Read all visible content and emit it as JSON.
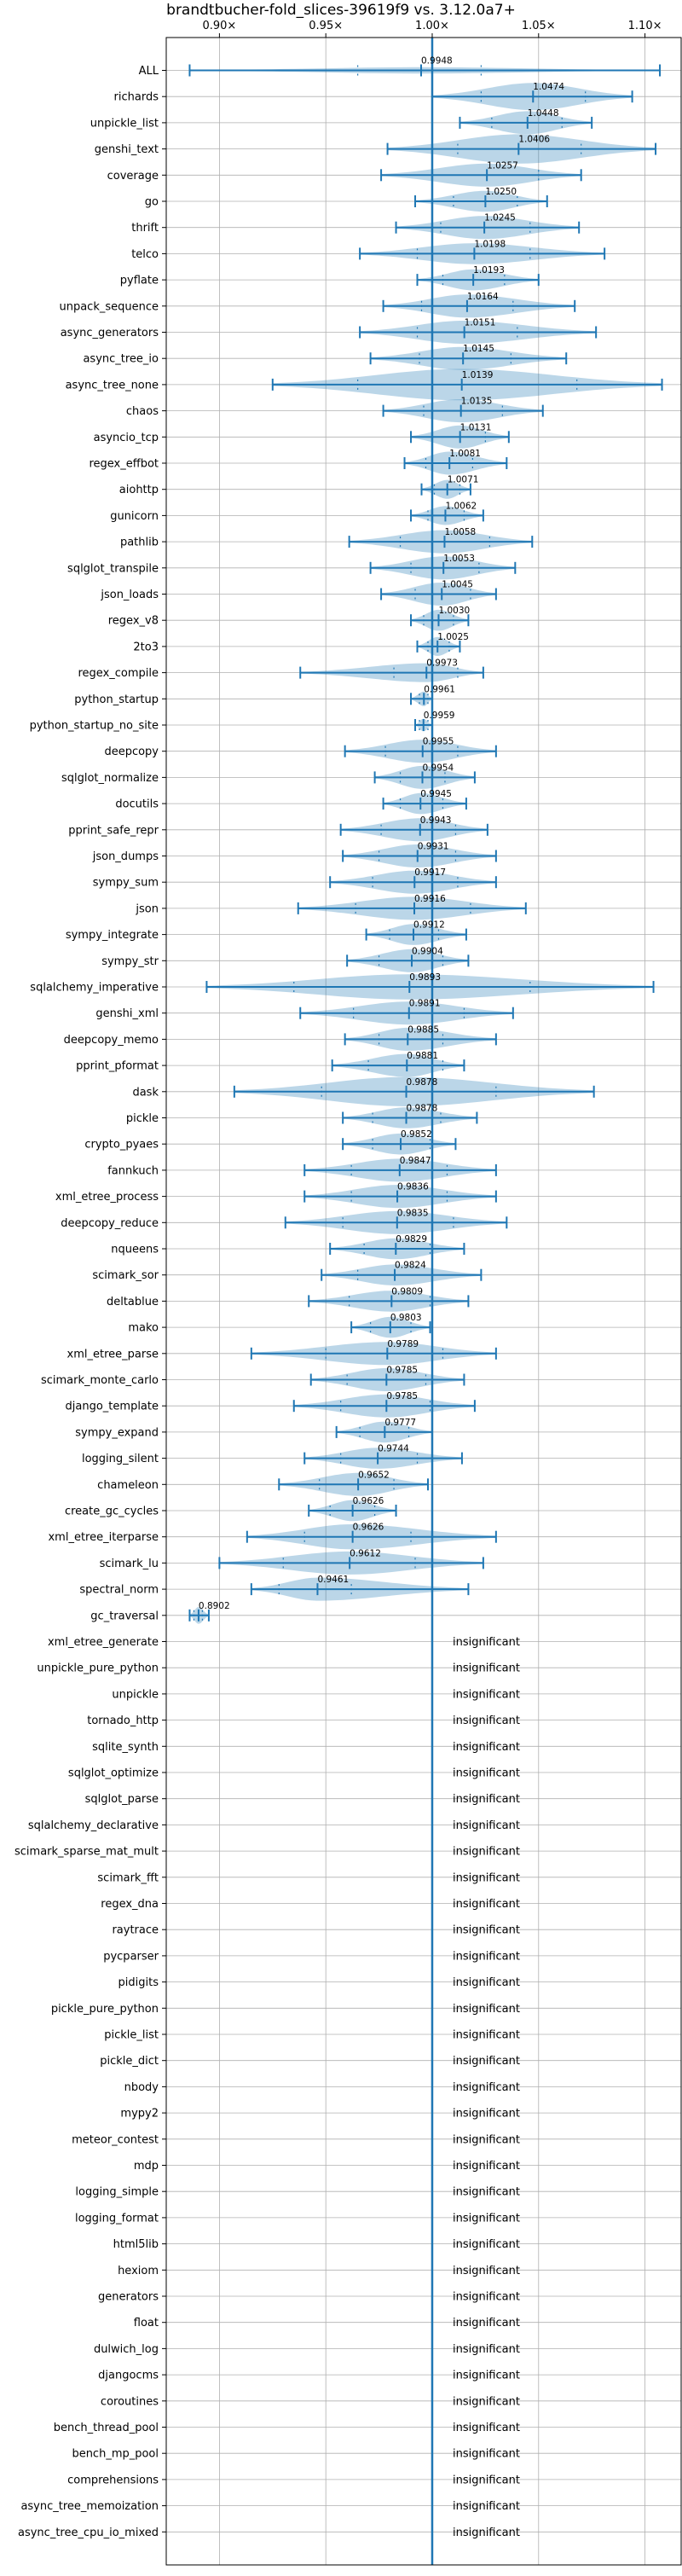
{
  "chart_data": {
    "type": "violin",
    "title": "brandtbucher-fold_slices-39619f9 vs. 3.12.0a7+",
    "x_tick_labels": [
      "0.90×",
      "0.95×",
      "1.00×",
      "1.05×",
      "1.10×"
    ],
    "x_ticks": [
      0.9,
      0.95,
      1.0,
      1.05,
      1.1
    ],
    "xlim": [
      0.875,
      1.117
    ],
    "reference_x": 1.0,
    "grid": true,
    "insignificant_label": "insignificant",
    "benchmarks": [
      {
        "name": "ALL",
        "value": 0.9948,
        "label": "0.9948",
        "min": 0.886,
        "max": 1.107,
        "q1": 0.965,
        "q3": 1.023,
        "width": 0.15
      },
      {
        "name": "richards",
        "value": 1.0474,
        "label": "1.0474",
        "min": 1.0,
        "max": 1.094,
        "q1": 1.023,
        "q3": 1.072,
        "width": 0.65
      },
      {
        "name": "unpickle_list",
        "value": 1.0448,
        "label": "1.0448",
        "min": 1.013,
        "max": 1.075,
        "q1": 1.028,
        "q3": 1.061,
        "width": 0.55
      },
      {
        "name": "genshi_text",
        "value": 1.0406,
        "label": "1.0406",
        "min": 0.979,
        "max": 1.105,
        "q1": 1.012,
        "q3": 1.07,
        "width": 0.7
      },
      {
        "name": "coverage",
        "value": 1.0257,
        "label": "1.0257",
        "min": 0.976,
        "max": 1.07,
        "q1": 1.0,
        "q3": 1.05,
        "width": 0.55
      },
      {
        "name": "go",
        "value": 1.025,
        "label": "1.0250",
        "min": 0.992,
        "max": 1.054,
        "q1": 1.01,
        "q3": 1.04,
        "width": 0.5
      },
      {
        "name": "thrift",
        "value": 1.0245,
        "label": "1.0245",
        "min": 0.983,
        "max": 1.069,
        "q1": 1.004,
        "q3": 1.046,
        "width": 0.55
      },
      {
        "name": "telco",
        "value": 1.0198,
        "label": "1.0198",
        "min": 0.966,
        "max": 1.081,
        "q1": 0.993,
        "q3": 1.046,
        "width": 0.5
      },
      {
        "name": "pyflate",
        "value": 1.0193,
        "label": "1.0193",
        "min": 0.993,
        "max": 1.05,
        "q1": 1.005,
        "q3": 1.034,
        "width": 0.5
      },
      {
        "name": "unpack_sequence",
        "value": 1.0164,
        "label": "1.0164",
        "min": 0.977,
        "max": 1.067,
        "q1": 0.995,
        "q3": 1.038,
        "width": 0.55
      },
      {
        "name": "async_generators",
        "value": 1.0151,
        "label": "1.0151",
        "min": 0.966,
        "max": 1.077,
        "q1": 0.993,
        "q3": 1.04,
        "width": 0.55
      },
      {
        "name": "async_tree_io",
        "value": 1.0145,
        "label": "1.0145",
        "min": 0.971,
        "max": 1.063,
        "q1": 0.994,
        "q3": 1.037,
        "width": 0.55
      },
      {
        "name": "async_tree_none",
        "value": 1.0139,
        "label": "1.0139",
        "min": 0.925,
        "max": 1.108,
        "q1": 0.965,
        "q3": 1.068,
        "width": 0.75
      },
      {
        "name": "chaos",
        "value": 1.0135,
        "label": "1.0135",
        "min": 0.977,
        "max": 1.052,
        "q1": 0.996,
        "q3": 1.033,
        "width": 0.55
      },
      {
        "name": "asyncio_tcp",
        "value": 1.0131,
        "label": "1.0131",
        "min": 0.99,
        "max": 1.036,
        "q1": 1.0,
        "q3": 1.025,
        "width": 0.55
      },
      {
        "name": "regex_effbot",
        "value": 1.0081,
        "label": "1.0081",
        "min": 0.987,
        "max": 1.035,
        "q1": 0.997,
        "q3": 1.019,
        "width": 0.55
      },
      {
        "name": "aiohttp",
        "value": 1.0071,
        "label": "1.0071",
        "min": 0.995,
        "max": 1.018,
        "q1": 1.001,
        "q3": 1.013,
        "width": 0.45
      },
      {
        "name": "gunicorn",
        "value": 1.0062,
        "label": "1.0062",
        "min": 0.99,
        "max": 1.024,
        "q1": 0.998,
        "q3": 1.015,
        "width": 0.45
      },
      {
        "name": "pathlib",
        "value": 1.0058,
        "label": "1.0058",
        "min": 0.961,
        "max": 1.047,
        "q1": 0.985,
        "q3": 1.027,
        "width": 0.55
      },
      {
        "name": "sqlglot_transpile",
        "value": 1.0053,
        "label": "1.0053",
        "min": 0.971,
        "max": 1.039,
        "q1": 0.99,
        "q3": 1.022,
        "width": 0.55
      },
      {
        "name": "json_loads",
        "value": 1.0045,
        "label": "1.0045",
        "min": 0.976,
        "max": 1.03,
        "q1": 0.992,
        "q3": 1.018,
        "width": 0.55
      },
      {
        "name": "regex_v8",
        "value": 1.003,
        "label": "1.0030",
        "min": 0.99,
        "max": 1.017,
        "q1": 0.996,
        "q3": 1.01,
        "width": 0.5
      },
      {
        "name": "2to3",
        "value": 1.0025,
        "label": "1.0025",
        "min": 0.993,
        "max": 1.013,
        "q1": 0.998,
        "q3": 1.008,
        "width": 0.45
      },
      {
        "name": "regex_compile",
        "value": 0.9973,
        "label": "0.9973",
        "min": 0.938,
        "max": 1.024,
        "q1": 0.982,
        "q3": 1.012,
        "width": 0.45
      },
      {
        "name": "python_startup",
        "value": 0.9961,
        "label": "0.9961",
        "min": 0.99,
        "max": 1.0,
        "q1": 0.994,
        "q3": 0.998,
        "width": 0.35
      },
      {
        "name": "python_startup_no_site",
        "value": 0.9959,
        "label": "0.9959",
        "min": 0.992,
        "max": 1.0,
        "q1": 0.994,
        "q3": 0.998,
        "width": 0.3
      },
      {
        "name": "deepcopy",
        "value": 0.9955,
        "label": "0.9955",
        "min": 0.959,
        "max": 1.03,
        "q1": 0.978,
        "q3": 1.012,
        "width": 0.55
      },
      {
        "name": "sqlglot_normalize",
        "value": 0.9954,
        "label": "0.9954",
        "min": 0.973,
        "max": 1.02,
        "q1": 0.985,
        "q3": 1.006,
        "width": 0.55
      },
      {
        "name": "docutils",
        "value": 0.9945,
        "label": "0.9945",
        "min": 0.977,
        "max": 1.016,
        "q1": 0.985,
        "q3": 1.005,
        "width": 0.5
      },
      {
        "name": "pprint_safe_repr",
        "value": 0.9943,
        "label": "0.9943",
        "min": 0.957,
        "max": 1.026,
        "q1": 0.976,
        "q3": 1.011,
        "width": 0.55
      },
      {
        "name": "json_dumps",
        "value": 0.9931,
        "label": "0.9931",
        "min": 0.958,
        "max": 1.03,
        "q1": 0.975,
        "q3": 1.011,
        "width": 0.55
      },
      {
        "name": "sympy_sum",
        "value": 0.9917,
        "label": "0.9917",
        "min": 0.952,
        "max": 1.03,
        "q1": 0.972,
        "q3": 1.012,
        "width": 0.55
      },
      {
        "name": "json",
        "value": 0.9916,
        "label": "0.9916",
        "min": 0.937,
        "max": 1.044,
        "q1": 0.964,
        "q3": 1.018,
        "width": 0.55
      },
      {
        "name": "sympy_integrate",
        "value": 0.9912,
        "label": "0.9912",
        "min": 0.969,
        "max": 1.016,
        "q1": 0.98,
        "q3": 1.003,
        "width": 0.5
      },
      {
        "name": "sympy_str",
        "value": 0.9904,
        "label": "0.9904",
        "min": 0.96,
        "max": 1.017,
        "q1": 0.975,
        "q3": 1.005,
        "width": 0.55
      },
      {
        "name": "sqlalchemy_imperative",
        "value": 0.9893,
        "label": "0.9893",
        "min": 0.894,
        "max": 1.104,
        "q1": 0.935,
        "q3": 1.046,
        "width": 0.6
      },
      {
        "name": "genshi_xml",
        "value": 0.9891,
        "label": "0.9891",
        "min": 0.938,
        "max": 1.038,
        "q1": 0.963,
        "q3": 1.015,
        "width": 0.55
      },
      {
        "name": "deepcopy_memo",
        "value": 0.9885,
        "label": "0.9885",
        "min": 0.959,
        "max": 1.03,
        "q1": 0.975,
        "q3": 1.005,
        "width": 0.55
      },
      {
        "name": "pprint_pformat",
        "value": 0.9881,
        "label": "0.9881",
        "min": 0.953,
        "max": 1.015,
        "q1": 0.97,
        "q3": 1.005,
        "width": 0.55
      },
      {
        "name": "dask",
        "value": 0.9878,
        "label": "0.9878",
        "min": 0.907,
        "max": 1.076,
        "q1": 0.948,
        "q3": 1.03,
        "width": 0.7
      },
      {
        "name": "pickle",
        "value": 0.9878,
        "label": "0.9878",
        "min": 0.958,
        "max": 1.021,
        "q1": 0.972,
        "q3": 1.004,
        "width": 0.5
      },
      {
        "name": "crypto_pyaes",
        "value": 0.9852,
        "label": "0.9852",
        "min": 0.958,
        "max": 1.011,
        "q1": 0.972,
        "q3": 0.999,
        "width": 0.5
      },
      {
        "name": "fannkuch",
        "value": 0.9847,
        "label": "0.9847",
        "min": 0.94,
        "max": 1.03,
        "q1": 0.962,
        "q3": 1.007,
        "width": 0.55
      },
      {
        "name": "xml_etree_process",
        "value": 0.9836,
        "label": "0.9836",
        "min": 0.94,
        "max": 1.03,
        "q1": 0.962,
        "q3": 1.007,
        "width": 0.55
      },
      {
        "name": "deepcopy_reduce",
        "value": 0.9835,
        "label": "0.9835",
        "min": 0.931,
        "max": 1.035,
        "q1": 0.958,
        "q3": 1.01,
        "width": 0.55
      },
      {
        "name": "nqueens",
        "value": 0.9829,
        "label": "0.9829",
        "min": 0.952,
        "max": 1.015,
        "q1": 0.968,
        "q3": 0.999,
        "width": 0.5
      },
      {
        "name": "scimark_sor",
        "value": 0.9824,
        "label": "0.9824",
        "min": 0.948,
        "max": 1.023,
        "q1": 0.965,
        "q3": 1.0,
        "width": 0.5
      },
      {
        "name": "deltablue",
        "value": 0.9809,
        "label": "0.9809",
        "min": 0.942,
        "max": 1.017,
        "q1": 0.961,
        "q3": 0.999,
        "width": 0.5
      },
      {
        "name": "mako",
        "value": 0.9803,
        "label": "0.9803",
        "min": 0.962,
        "max": 0.999,
        "q1": 0.971,
        "q3": 0.99,
        "width": 0.5
      },
      {
        "name": "xml_etree_parse",
        "value": 0.9789,
        "label": "0.9789",
        "min": 0.915,
        "max": 1.03,
        "q1": 0.95,
        "q3": 1.005,
        "width": 0.55
      },
      {
        "name": "scimark_monte_carlo",
        "value": 0.9785,
        "label": "0.9785",
        "min": 0.943,
        "max": 1.015,
        "q1": 0.96,
        "q3": 0.997,
        "width": 0.55
      },
      {
        "name": "django_template",
        "value": 0.9785,
        "label": "0.9785",
        "min": 0.935,
        "max": 1.02,
        "q1": 0.957,
        "q3": 0.999,
        "width": 0.55
      },
      {
        "name": "sympy_expand",
        "value": 0.9777,
        "label": "0.9777",
        "min": 0.955,
        "max": 1.0,
        "q1": 0.966,
        "q3": 0.989,
        "width": 0.5
      },
      {
        "name": "logging_silent",
        "value": 0.9744,
        "label": "0.9744",
        "min": 0.94,
        "max": 1.014,
        "q1": 0.957,
        "q3": 0.993,
        "width": 0.5
      },
      {
        "name": "chameleon",
        "value": 0.9652,
        "label": "0.9652",
        "min": 0.928,
        "max": 0.998,
        "q1": 0.947,
        "q3": 0.982,
        "width": 0.55
      },
      {
        "name": "create_gc_cycles",
        "value": 0.9626,
        "label": "0.9626",
        "min": 0.942,
        "max": 0.983,
        "q1": 0.952,
        "q3": 0.973,
        "width": 0.5
      },
      {
        "name": "xml_etree_iterparse",
        "value": 0.9626,
        "label": "0.9626",
        "min": 0.913,
        "max": 1.03,
        "q1": 0.94,
        "q3": 0.99,
        "width": 0.6
      },
      {
        "name": "scimark_lu",
        "value": 0.9612,
        "label": "0.9612",
        "min": 0.9,
        "max": 1.024,
        "q1": 0.93,
        "q3": 0.992,
        "width": 0.55
      },
      {
        "name": "spectral_norm",
        "value": 0.9461,
        "label": "0.9461",
        "min": 0.915,
        "max": 1.017,
        "q1": 0.928,
        "q3": 0.962,
        "width": 0.55
      },
      {
        "name": "gc_traversal",
        "value": 0.8902,
        "label": "0.8902",
        "min": 0.886,
        "max": 0.895,
        "q1": 0.888,
        "q3": 0.892,
        "width": 0.4
      },
      {
        "name": "xml_etree_generate",
        "insignificant": true
      },
      {
        "name": "unpickle_pure_python",
        "insignificant": true
      },
      {
        "name": "unpickle",
        "insignificant": true
      },
      {
        "name": "tornado_http",
        "insignificant": true
      },
      {
        "name": "sqlite_synth",
        "insignificant": true
      },
      {
        "name": "sqlglot_optimize",
        "insignificant": true
      },
      {
        "name": "sqlglot_parse",
        "insignificant": true
      },
      {
        "name": "sqlalchemy_declarative",
        "insignificant": true
      },
      {
        "name": "scimark_sparse_mat_mult",
        "insignificant": true
      },
      {
        "name": "scimark_fft",
        "insignificant": true
      },
      {
        "name": "regex_dna",
        "insignificant": true
      },
      {
        "name": "raytrace",
        "insignificant": true
      },
      {
        "name": "pycparser",
        "insignificant": true
      },
      {
        "name": "pidigits",
        "insignificant": true
      },
      {
        "name": "pickle_pure_python",
        "insignificant": true
      },
      {
        "name": "pickle_list",
        "insignificant": true
      },
      {
        "name": "pickle_dict",
        "insignificant": true
      },
      {
        "name": "nbody",
        "insignificant": true
      },
      {
        "name": "mypy2",
        "insignificant": true
      },
      {
        "name": "meteor_contest",
        "insignificant": true
      },
      {
        "name": "mdp",
        "insignificant": true
      },
      {
        "name": "logging_simple",
        "insignificant": true
      },
      {
        "name": "logging_format",
        "insignificant": true
      },
      {
        "name": "html5lib",
        "insignificant": true
      },
      {
        "name": "hexiom",
        "insignificant": true
      },
      {
        "name": "generators",
        "insignificant": true
      },
      {
        "name": "float",
        "insignificant": true
      },
      {
        "name": "dulwich_log",
        "insignificant": true
      },
      {
        "name": "djangocms",
        "insignificant": true
      },
      {
        "name": "coroutines",
        "insignificant": true
      },
      {
        "name": "bench_thread_pool",
        "insignificant": true
      },
      {
        "name": "bench_mp_pool",
        "insignificant": true
      },
      {
        "name": "comprehensions",
        "insignificant": true
      },
      {
        "name": "async_tree_memoization",
        "insignificant": true
      },
      {
        "name": "async_tree_cpu_io_mixed",
        "insignificant": true
      }
    ]
  }
}
